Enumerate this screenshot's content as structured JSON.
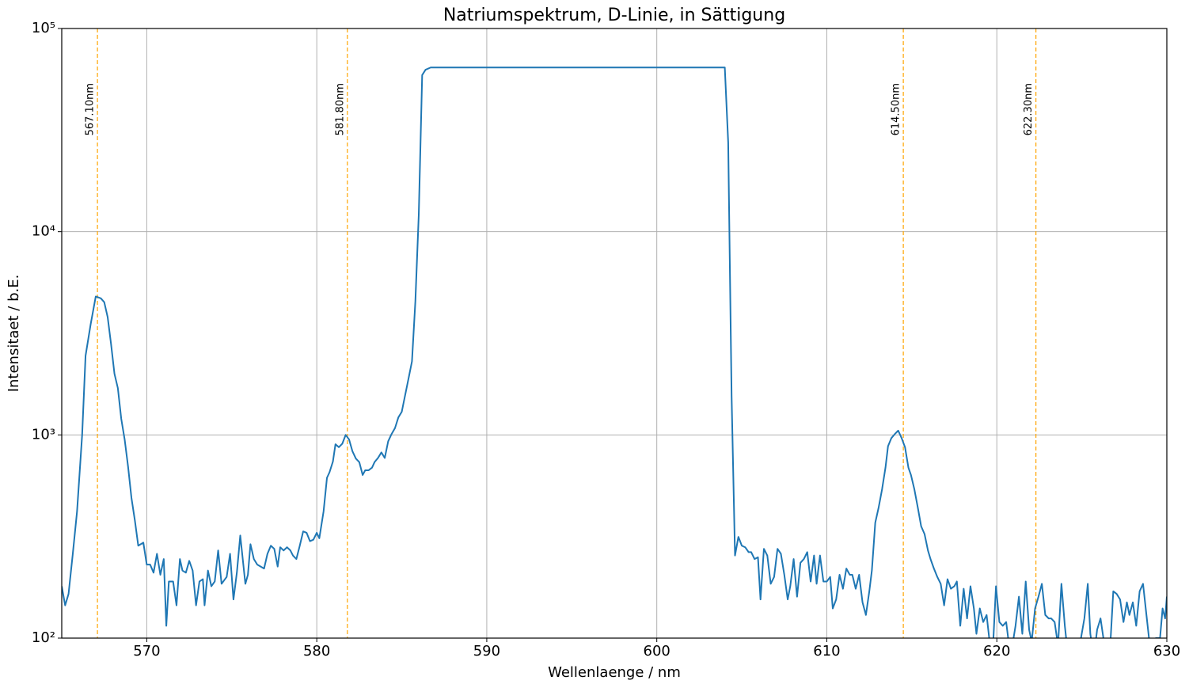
{
  "chart_data": {
    "type": "line",
    "title": "Natriumspektrum, D-Linie, in Sättigung",
    "xlabel": "Wellenlaenge / nm",
    "ylabel": "Intensitaet / b.E.",
    "log_y": true,
    "grid": true,
    "xlim": [
      565,
      630
    ],
    "xticks": [
      570,
      580,
      590,
      600,
      610,
      620,
      630
    ],
    "ylim": [
      100,
      100000
    ],
    "yticks": [
      {
        "value": 100,
        "label": "10²"
      },
      {
        "value": 1000,
        "label": "10³"
      },
      {
        "value": 10000,
        "label": "10⁴"
      },
      {
        "value": 100000,
        "label": "10⁵"
      }
    ],
    "vline_color": "#ffa500",
    "vlines": [
      {
        "x": 567.1,
        "label": "567.10nm"
      },
      {
        "x": 581.8,
        "label": "581.80nm"
      },
      {
        "x": 614.5,
        "label": "614.50nm"
      },
      {
        "x": 622.3,
        "label": "622.30nm"
      }
    ],
    "x": [
      565.0,
      565.2,
      565.4,
      565.65,
      565.9,
      566.2,
      566.4,
      566.7,
      567.0,
      567.3,
      567.5,
      567.7,
      567.9,
      568.1,
      568.3,
      568.5,
      568.7,
      568.9,
      569.1,
      569.3,
      569.5,
      569.8,
      570.0,
      570.2,
      570.4,
      570.6,
      570.8,
      571.0,
      571.15,
      571.3,
      571.55,
      571.75,
      571.95,
      572.1,
      572.3,
      572.5,
      572.7,
      572.9,
      573.1,
      573.3,
      573.4,
      573.6,
      573.8,
      574.0,
      574.2,
      574.4,
      574.6,
      574.7,
      574.9,
      575.1,
      575.3,
      575.5,
      575.8,
      575.95,
      576.1,
      576.3,
      576.5,
      576.7,
      576.9,
      577.1,
      577.3,
      577.5,
      577.7,
      577.85,
      578.05,
      578.25,
      578.45,
      578.6,
      578.8,
      579.0,
      579.2,
      579.4,
      579.6,
      579.8,
      580.0,
      580.15,
      580.4,
      580.6,
      580.75,
      580.95,
      581.1,
      581.3,
      581.5,
      581.7,
      581.9,
      582.1,
      582.3,
      582.5,
      582.7,
      582.85,
      583.05,
      583.25,
      583.4,
      583.6,
      583.8,
      584.0,
      584.2,
      584.4,
      584.6,
      584.8,
      585.0,
      585.15,
      585.4,
      585.6,
      585.8,
      586.0,
      586.2,
      586.4,
      586.7,
      604.0,
      604.2,
      604.4,
      604.6,
      604.8,
      605.0,
      605.2,
      605.4,
      605.55,
      605.75,
      605.95,
      606.1,
      606.3,
      606.5,
      606.7,
      606.9,
      607.1,
      607.3,
      607.5,
      607.7,
      607.85,
      608.05,
      608.25,
      608.45,
      608.65,
      608.85,
      609.05,
      609.25,
      609.4,
      609.6,
      609.8,
      610.0,
      610.2,
      610.35,
      610.55,
      610.75,
      610.95,
      611.15,
      611.35,
      611.5,
      611.7,
      611.9,
      612.1,
      612.3,
      612.5,
      612.65,
      612.85,
      613.05,
      613.25,
      613.45,
      613.6,
      613.8,
      614.0,
      614.2,
      614.4,
      614.6,
      614.8,
      614.95,
      615.15,
      615.35,
      615.55,
      615.75,
      615.95,
      616.1,
      616.3,
      616.5,
      616.7,
      616.9,
      617.1,
      617.3,
      617.5,
      617.65,
      617.85,
      618.05,
      618.25,
      618.45,
      618.65,
      618.8,
      619.0,
      619.2,
      619.4,
      619.6,
      619.8,
      619.95,
      620.15,
      620.35,
      620.55,
      620.75,
      620.95,
      621.1,
      621.3,
      621.5,
      621.7,
      621.9,
      622.05,
      622.25,
      622.45,
      622.65,
      622.85,
      623.05,
      623.2,
      623.4,
      623.6,
      623.8,
      624.0,
      624.2,
      624.35,
      624.55,
      624.75,
      624.95,
      625.15,
      625.35,
      625.5,
      625.7,
      625.9,
      626.1,
      626.3,
      626.5,
      626.65,
      626.85,
      627.05,
      627.25,
      627.45,
      627.65,
      627.8,
      628.0,
      628.2,
      628.4,
      628.6,
      628.8,
      628.95,
      629.15,
      629.35,
      629.6,
      629.75,
      629.9,
      630.0
    ],
    "series": [
      {
        "color": "#1f77b4",
        "values": [
          180,
          145,
          165,
          260,
          420,
          1000,
          2450,
          3500,
          4800,
          4700,
          4500,
          3800,
          2800,
          2000,
          1700,
          1200,
          950,
          700,
          490,
          380,
          285,
          295,
          230,
          230,
          210,
          260,
          205,
          245,
          115,
          190,
          190,
          145,
          245,
          215,
          210,
          240,
          215,
          145,
          190,
          195,
          145,
          215,
          180,
          190,
          270,
          185,
          195,
          200,
          260,
          155,
          210,
          320,
          185,
          205,
          290,
          245,
          230,
          225,
          220,
          260,
          285,
          275,
          225,
          280,
          270,
          280,
          270,
          255,
          245,
          285,
          335,
          330,
          300,
          305,
          330,
          310,
          420,
          615,
          655,
          740,
          900,
          870,
          905,
          1000,
          950,
          830,
          765,
          735,
          635,
          670,
          670,
          690,
          735,
          770,
          820,
          770,
          930,
          1010,
          1080,
          1220,
          1300,
          1500,
          1900,
          2300,
          4550,
          12200,
          59000,
          62700,
          64300,
          64300,
          27500,
          1550,
          255,
          315,
          285,
          280,
          265,
          265,
          245,
          250,
          155,
          275,
          255,
          185,
          200,
          275,
          260,
          205,
          155,
          180,
          245,
          160,
          235,
          245,
          265,
          190,
          255,
          185,
          255,
          190,
          190,
          200,
          140,
          155,
          205,
          175,
          220,
          205,
          205,
          175,
          205,
          150,
          130,
          170,
          215,
          370,
          440,
          540,
          690,
          880,
          965,
          1010,
          1050,
          965,
          870,
          690,
          635,
          540,
          440,
          355,
          325,
          270,
          245,
          220,
          200,
          185,
          145,
          195,
          175,
          180,
          190,
          115,
          175,
          125,
          180,
          140,
          105,
          140,
          120,
          130,
          92,
          100,
          180,
          120,
          115,
          120,
          88,
          96,
          115,
          160,
          105,
          190,
          110,
          96,
          140,
          160,
          185,
          130,
          125,
          125,
          120,
          92,
          185,
          115,
          80,
          80,
          88,
          85,
          100,
          125,
          185,
          105,
          80,
          110,
          125,
          96,
          80,
          85,
          170,
          165,
          155,
          120,
          150,
          130,
          150,
          115,
          170,
          185,
          130,
          100,
          80,
          100,
          100,
          140,
          125,
          160
        ]
      }
    ]
  }
}
